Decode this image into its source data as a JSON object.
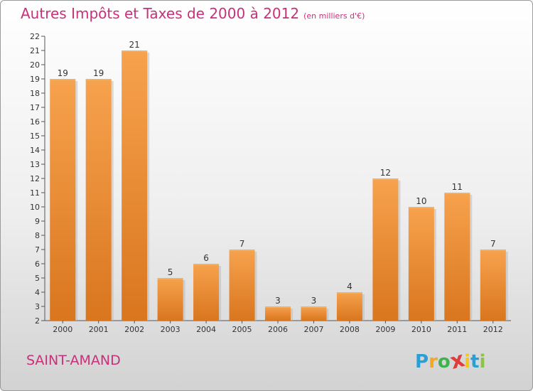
{
  "header": {
    "title": "Autres Impôts et Taxes de 2000 à 2012",
    "unit": "(en milliers d'€)"
  },
  "commune": "SAINT-AMAND",
  "logo": {
    "letters": [
      "P",
      "r",
      "o",
      "x",
      "i",
      "t",
      "i"
    ],
    "colors": [
      "#2a9fd6",
      "#f5a623",
      "#3cb44b",
      "#e03c3c",
      "#f5c518",
      "#2a9fd6",
      "#8bc34a"
    ]
  },
  "colors": {
    "bar": "#f0923a",
    "bar_highlight": "#f7b060",
    "title": "#c8307a"
  },
  "chart_data": {
    "type": "bar",
    "categories": [
      "2000",
      "2001",
      "2002",
      "2003",
      "2004",
      "2005",
      "2006",
      "2007",
      "2008",
      "2009",
      "2010",
      "2011",
      "2012"
    ],
    "values": [
      19,
      19,
      21,
      5,
      6,
      7,
      3,
      3,
      4,
      12,
      10,
      11,
      7
    ],
    "ylim": [
      2,
      22
    ],
    "yticks": [
      2,
      3,
      4,
      5,
      6,
      7,
      8,
      9,
      10,
      11,
      12,
      13,
      14,
      15,
      16,
      17,
      18,
      19,
      20,
      21,
      22
    ],
    "grid": false,
    "legend": "none"
  }
}
